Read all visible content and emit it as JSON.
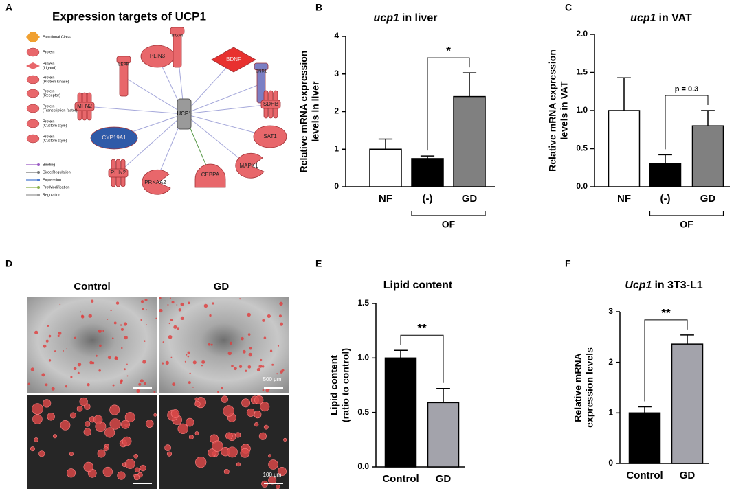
{
  "panel_labels": [
    "A",
    "B",
    "C",
    "D",
    "E",
    "F"
  ],
  "network": {
    "title": "Expression targets of UCP1",
    "center": "UCP1",
    "nodes": [
      "PLIN3",
      "ITGA4",
      "BDNF",
      "CNR1",
      "SDHB",
      "SAT1",
      "MAPK1",
      "CEBPA",
      "PRKAA2",
      "PLIN2",
      "CYP19A1",
      "MFN2",
      "LEPR"
    ],
    "legend_nodes": [
      [
        "Functional Class"
      ],
      [
        "Protein"
      ],
      [
        "Protein",
        "(Ligand)"
      ],
      [
        "Protein",
        "(Protein kinase)"
      ],
      [
        "Protein",
        "(Receptor)"
      ],
      [
        "Protein",
        "(Transcription factor)"
      ],
      [
        "Protein",
        "(Custom style)"
      ],
      [
        "Protein",
        "(Custom style)"
      ]
    ],
    "legend_edges": [
      "Binding",
      "DirectRegulation",
      "Expression",
      "ProtModification",
      "Regulation"
    ]
  },
  "images": {
    "columns": [
      "Control",
      "GD"
    ],
    "scale_bars": [
      "500 μm",
      "100 μm"
    ]
  },
  "chart_data": [
    {
      "type": "bar",
      "title": [
        "ucp1",
        "in liver"
      ],
      "ylabel": [
        "Relative mRNA expression",
        "levels in liver"
      ],
      "categories": [
        "NF",
        "(-)",
        "GD"
      ],
      "values": [
        1.0,
        0.75,
        2.4
      ],
      "errors": [
        0.27,
        0.07,
        0.63
      ],
      "colors": [
        "#ffffff",
        "#000000",
        "#808080"
      ],
      "ylim": [
        0,
        4
      ],
      "yticks": [
        0,
        1,
        2,
        3,
        4
      ],
      "group": {
        "label": "OF",
        "from": 1,
        "to": 2
      },
      "annotations": [
        {
          "text": "*",
          "from": 1,
          "to": 2
        }
      ]
    },
    {
      "type": "bar",
      "title": [
        "ucp1",
        "in VAT"
      ],
      "ylabel": [
        "Relative mRNA expression",
        "levels in VAT"
      ],
      "categories": [
        "NF",
        "(-)",
        "GD"
      ],
      "values": [
        1.0,
        0.3,
        0.8
      ],
      "errors": [
        0.43,
        0.12,
        0.2
      ],
      "colors": [
        "#ffffff",
        "#000000",
        "#808080"
      ],
      "ylim": [
        0,
        2
      ],
      "yticks": [
        {
          "value": 0,
          "label": "0.0"
        },
        0.5,
        {
          "value": 1,
          "label": "1.0"
        },
        1.5,
        {
          "value": 2,
          "label": "2.0"
        }
      ],
      "group": {
        "label": "OF",
        "from": 1,
        "to": 2
      },
      "annotations": [
        {
          "text": "p = 0.3",
          "from": 1,
          "to": 2
        }
      ]
    },
    {
      "type": "bar",
      "title": [
        "Lipid content"
      ],
      "ylabel": [
        "Lipid content",
        "(ratio to control)"
      ],
      "categories": [
        "Control",
        "GD"
      ],
      "values": [
        1.0,
        0.59
      ],
      "errors": [
        0.07,
        0.13
      ],
      "colors": [
        "#000000",
        "#a3a3ab"
      ],
      "ylim": [
        0,
        1.5
      ],
      "yticks": [
        {
          "value": 0,
          "label": "0.0"
        },
        0.5,
        {
          "value": 1,
          "label": "1.0"
        },
        1.5
      ],
      "annotations": [
        {
          "text": "**",
          "from": 0,
          "to": 1
        }
      ]
    },
    {
      "type": "bar",
      "title": [
        "Ucp1",
        "in 3T3-L1"
      ],
      "ylabel": [
        "Relative mRNA",
        "expression levels"
      ],
      "categories": [
        "Control",
        "GD"
      ],
      "values": [
        1.0,
        2.36
      ],
      "errors": [
        0.12,
        0.18
      ],
      "colors": [
        "#000000",
        "#a3a3ab"
      ],
      "ylim": [
        0,
        3
      ],
      "yticks": [
        0,
        1,
        2,
        3
      ],
      "annotations": [
        {
          "text": "**",
          "from": 0,
          "to": 1
        }
      ]
    }
  ]
}
